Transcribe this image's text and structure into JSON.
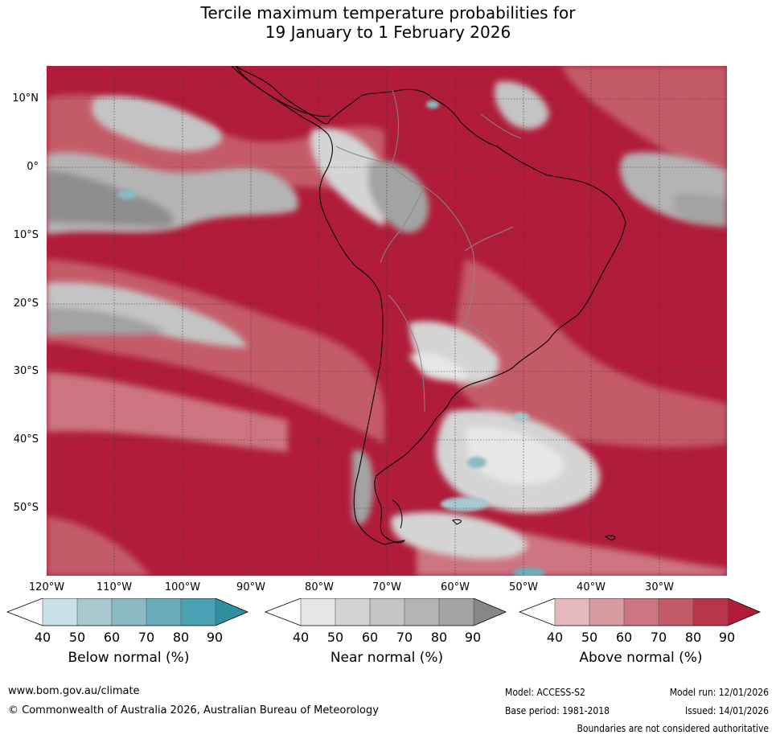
{
  "title": {
    "line1": "Tercile maximum temperature probabilities for",
    "line2": "19 January to 1 February 2026"
  },
  "map": {
    "lat_labels": [
      "10°N",
      "0°",
      "10°S",
      "20°S",
      "30°S",
      "40°S",
      "50°S"
    ],
    "lon_labels": [
      "120°W",
      "110°W",
      "100°W",
      "90°W",
      "80°W",
      "70°W",
      "60°W",
      "50°W",
      "40°W",
      "30°W"
    ]
  },
  "legends": [
    {
      "title": "Below normal (%)",
      "ticks": [
        "40",
        "50",
        "60",
        "70",
        "80",
        "90"
      ],
      "colors": [
        "#ffffff",
        "#c7e1e7",
        "#a6c8ce",
        "#8bbac2",
        "#6cadbb",
        "#4aa2b2",
        "#2e8fa1"
      ]
    },
    {
      "title": "Near normal (%)",
      "ticks": [
        "40",
        "50",
        "60",
        "70",
        "80",
        "90"
      ],
      "colors": [
        "#ffffff",
        "#e6e6e6",
        "#d4d4d4",
        "#c4c4c4",
        "#b4b4b4",
        "#a3a3a3",
        "#868686"
      ]
    },
    {
      "title": "Above normal (%)",
      "ticks": [
        "40",
        "50",
        "60",
        "70",
        "80",
        "90"
      ],
      "colors": [
        "#ffffff",
        "#e4b8bd",
        "#d89ba2",
        "#cc7580",
        "#c45b68",
        "#b8354a",
        "#b01c3a"
      ]
    }
  ],
  "footer": {
    "website": "www.bom.gov.au/climate",
    "copyright": "© Commonwealth of Australia 2026, Australian Bureau of Meteorology",
    "model": "Model: ACCESS-S2",
    "model_run": "Model run: 12/01/2026",
    "base_period": "Base period: 1981-2018",
    "issued": "Issued: 14/01/2026",
    "disclaimer": "Boundaries are not considered authoritative"
  },
  "colors": {
    "above_high": "#b01c3a",
    "above_mid": "#c45b68",
    "above_low": "#d89ba2",
    "near_mid": "#b4b4b4",
    "near_high": "#8e8e8e",
    "below_mid": "#8bbac2"
  }
}
